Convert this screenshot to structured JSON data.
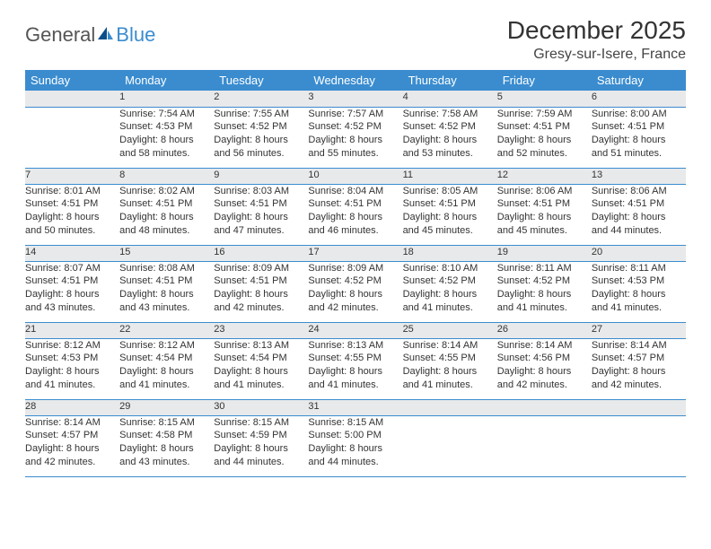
{
  "brand": {
    "general": "General",
    "blue": "Blue"
  },
  "title": "December 2025",
  "location": "Gresy-sur-Isere, France",
  "colors": {
    "header_bg": "#3a8ccf",
    "header_text": "#ffffff",
    "daynum_bg": "#e8e9ea",
    "row_border": "#3a8ccf",
    "text": "#333333",
    "background": "#ffffff"
  },
  "weekdays": [
    "Sunday",
    "Monday",
    "Tuesday",
    "Wednesday",
    "Thursday",
    "Friday",
    "Saturday"
  ],
  "weeks": [
    {
      "nums": [
        "",
        "1",
        "2",
        "3",
        "4",
        "5",
        "6"
      ],
      "cells": [
        null,
        {
          "sr": "Sunrise: 7:54 AM",
          "ss": "Sunset: 4:53 PM",
          "d1": "Daylight: 8 hours",
          "d2": "and 58 minutes."
        },
        {
          "sr": "Sunrise: 7:55 AM",
          "ss": "Sunset: 4:52 PM",
          "d1": "Daylight: 8 hours",
          "d2": "and 56 minutes."
        },
        {
          "sr": "Sunrise: 7:57 AM",
          "ss": "Sunset: 4:52 PM",
          "d1": "Daylight: 8 hours",
          "d2": "and 55 minutes."
        },
        {
          "sr": "Sunrise: 7:58 AM",
          "ss": "Sunset: 4:52 PM",
          "d1": "Daylight: 8 hours",
          "d2": "and 53 minutes."
        },
        {
          "sr": "Sunrise: 7:59 AM",
          "ss": "Sunset: 4:51 PM",
          "d1": "Daylight: 8 hours",
          "d2": "and 52 minutes."
        },
        {
          "sr": "Sunrise: 8:00 AM",
          "ss": "Sunset: 4:51 PM",
          "d1": "Daylight: 8 hours",
          "d2": "and 51 minutes."
        }
      ]
    },
    {
      "nums": [
        "7",
        "8",
        "9",
        "10",
        "11",
        "12",
        "13"
      ],
      "cells": [
        {
          "sr": "Sunrise: 8:01 AM",
          "ss": "Sunset: 4:51 PM",
          "d1": "Daylight: 8 hours",
          "d2": "and 50 minutes."
        },
        {
          "sr": "Sunrise: 8:02 AM",
          "ss": "Sunset: 4:51 PM",
          "d1": "Daylight: 8 hours",
          "d2": "and 48 minutes."
        },
        {
          "sr": "Sunrise: 8:03 AM",
          "ss": "Sunset: 4:51 PM",
          "d1": "Daylight: 8 hours",
          "d2": "and 47 minutes."
        },
        {
          "sr": "Sunrise: 8:04 AM",
          "ss": "Sunset: 4:51 PM",
          "d1": "Daylight: 8 hours",
          "d2": "and 46 minutes."
        },
        {
          "sr": "Sunrise: 8:05 AM",
          "ss": "Sunset: 4:51 PM",
          "d1": "Daylight: 8 hours",
          "d2": "and 45 minutes."
        },
        {
          "sr": "Sunrise: 8:06 AM",
          "ss": "Sunset: 4:51 PM",
          "d1": "Daylight: 8 hours",
          "d2": "and 45 minutes."
        },
        {
          "sr": "Sunrise: 8:06 AM",
          "ss": "Sunset: 4:51 PM",
          "d1": "Daylight: 8 hours",
          "d2": "and 44 minutes."
        }
      ]
    },
    {
      "nums": [
        "14",
        "15",
        "16",
        "17",
        "18",
        "19",
        "20"
      ],
      "cells": [
        {
          "sr": "Sunrise: 8:07 AM",
          "ss": "Sunset: 4:51 PM",
          "d1": "Daylight: 8 hours",
          "d2": "and 43 minutes."
        },
        {
          "sr": "Sunrise: 8:08 AM",
          "ss": "Sunset: 4:51 PM",
          "d1": "Daylight: 8 hours",
          "d2": "and 43 minutes."
        },
        {
          "sr": "Sunrise: 8:09 AM",
          "ss": "Sunset: 4:51 PM",
          "d1": "Daylight: 8 hours",
          "d2": "and 42 minutes."
        },
        {
          "sr": "Sunrise: 8:09 AM",
          "ss": "Sunset: 4:52 PM",
          "d1": "Daylight: 8 hours",
          "d2": "and 42 minutes."
        },
        {
          "sr": "Sunrise: 8:10 AM",
          "ss": "Sunset: 4:52 PM",
          "d1": "Daylight: 8 hours",
          "d2": "and 41 minutes."
        },
        {
          "sr": "Sunrise: 8:11 AM",
          "ss": "Sunset: 4:52 PM",
          "d1": "Daylight: 8 hours",
          "d2": "and 41 minutes."
        },
        {
          "sr": "Sunrise: 8:11 AM",
          "ss": "Sunset: 4:53 PM",
          "d1": "Daylight: 8 hours",
          "d2": "and 41 minutes."
        }
      ]
    },
    {
      "nums": [
        "21",
        "22",
        "23",
        "24",
        "25",
        "26",
        "27"
      ],
      "cells": [
        {
          "sr": "Sunrise: 8:12 AM",
          "ss": "Sunset: 4:53 PM",
          "d1": "Daylight: 8 hours",
          "d2": "and 41 minutes."
        },
        {
          "sr": "Sunrise: 8:12 AM",
          "ss": "Sunset: 4:54 PM",
          "d1": "Daylight: 8 hours",
          "d2": "and 41 minutes."
        },
        {
          "sr": "Sunrise: 8:13 AM",
          "ss": "Sunset: 4:54 PM",
          "d1": "Daylight: 8 hours",
          "d2": "and 41 minutes."
        },
        {
          "sr": "Sunrise: 8:13 AM",
          "ss": "Sunset: 4:55 PM",
          "d1": "Daylight: 8 hours",
          "d2": "and 41 minutes."
        },
        {
          "sr": "Sunrise: 8:14 AM",
          "ss": "Sunset: 4:55 PM",
          "d1": "Daylight: 8 hours",
          "d2": "and 41 minutes."
        },
        {
          "sr": "Sunrise: 8:14 AM",
          "ss": "Sunset: 4:56 PM",
          "d1": "Daylight: 8 hours",
          "d2": "and 42 minutes."
        },
        {
          "sr": "Sunrise: 8:14 AM",
          "ss": "Sunset: 4:57 PM",
          "d1": "Daylight: 8 hours",
          "d2": "and 42 minutes."
        }
      ]
    },
    {
      "nums": [
        "28",
        "29",
        "30",
        "31",
        "",
        "",
        ""
      ],
      "cells": [
        {
          "sr": "Sunrise: 8:14 AM",
          "ss": "Sunset: 4:57 PM",
          "d1": "Daylight: 8 hours",
          "d2": "and 42 minutes."
        },
        {
          "sr": "Sunrise: 8:15 AM",
          "ss": "Sunset: 4:58 PM",
          "d1": "Daylight: 8 hours",
          "d2": "and 43 minutes."
        },
        {
          "sr": "Sunrise: 8:15 AM",
          "ss": "Sunset: 4:59 PM",
          "d1": "Daylight: 8 hours",
          "d2": "and 44 minutes."
        },
        {
          "sr": "Sunrise: 8:15 AM",
          "ss": "Sunset: 5:00 PM",
          "d1": "Daylight: 8 hours",
          "d2": "and 44 minutes."
        },
        null,
        null,
        null
      ]
    }
  ]
}
